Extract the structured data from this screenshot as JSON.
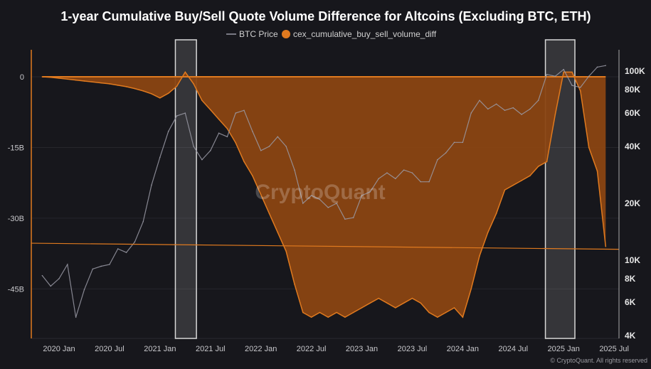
{
  "chart_data": {
    "type": "area",
    "title": "1-year Cumulative Buy/Sell Quote Volume Difference for Altcoins (Excluding BTC, ETH)",
    "watermark": "CryptoQuant",
    "copyright": "© CryptoQuant. All rights reserved",
    "colors": {
      "background": "#17171c",
      "diff": "#e07a1f",
      "diff_fill": "#8a4512",
      "btc": "#9a9aa6",
      "highlight": "#ffffff"
    },
    "legend": {
      "position": "top",
      "entries": [
        {
          "name": "BTC Price",
          "marker": "line"
        },
        {
          "name": "cex_cumulative_buy_sell_volume_diff",
          "marker": "circle"
        }
      ]
    },
    "x_ticks": [
      "2020 Jan",
      "2020 Jul",
      "2021 Jan",
      "2021 Jul",
      "2022 Jan",
      "2022 Jul",
      "2023 Jan",
      "2023 Jul",
      "2024 Jan",
      "2024 Jul",
      "2025 Jan",
      "2025 Jul"
    ],
    "left_axis": {
      "ticks": [
        {
          "v": 0,
          "label": "0"
        },
        {
          "v": -15,
          "label": "-15B"
        },
        {
          "v": -30,
          "label": "-30B"
        },
        {
          "v": -45,
          "label": "-45B"
        }
      ],
      "range": [
        -55,
        4
      ],
      "unit": "B"
    },
    "right_axis": {
      "scale": "log",
      "range": [
        4000,
        110000
      ],
      "ticks": [
        {
          "v": 100000,
          "label": "100K"
        },
        {
          "v": 80000,
          "label": "80K"
        },
        {
          "v": 60000,
          "label": "60K"
        },
        {
          "v": 40000,
          "label": "40K"
        },
        {
          "v": 20000,
          "label": "20K"
        },
        {
          "v": 10000,
          "label": "10K"
        },
        {
          "v": 8000,
          "label": "8K"
        },
        {
          "v": 6000,
          "label": "6K"
        },
        {
          "v": 4000,
          "label": "4K"
        }
      ]
    },
    "x": [
      "2019-11",
      "2019-12",
      "2020-01",
      "2020-02",
      "2020-03",
      "2020-04",
      "2020-05",
      "2020-06",
      "2020-07",
      "2020-08",
      "2020-09",
      "2020-10",
      "2020-11",
      "2020-12",
      "2021-01",
      "2021-02",
      "2021-03",
      "2021-04",
      "2021-05",
      "2021-06",
      "2021-07",
      "2021-08",
      "2021-09",
      "2021-10",
      "2021-11",
      "2021-12",
      "2022-01",
      "2022-02",
      "2022-03",
      "2022-04",
      "2022-05",
      "2022-06",
      "2022-07",
      "2022-08",
      "2022-09",
      "2022-10",
      "2022-11",
      "2022-12",
      "2023-01",
      "2023-02",
      "2023-03",
      "2023-04",
      "2023-05",
      "2023-06",
      "2023-07",
      "2023-08",
      "2023-09",
      "2023-10",
      "2023-11",
      "2023-12",
      "2024-01",
      "2024-02",
      "2024-03",
      "2024-04",
      "2024-05",
      "2024-06",
      "2024-07",
      "2024-08",
      "2024-09",
      "2024-10",
      "2024-11",
      "2024-12",
      "2025-01",
      "2025-02",
      "2025-03",
      "2025-04",
      "2025-05",
      "2025-06"
    ],
    "series": [
      {
        "name": "cex_cumulative_buy_sell_volume_diff",
        "axis": "left",
        "values": [
          0,
          -0.1,
          -0.3,
          -0.5,
          -0.7,
          -0.9,
          -1.1,
          -1.3,
          -1.5,
          -1.8,
          -2.1,
          -2.5,
          -3,
          -3.6,
          -4.5,
          -3.5,
          -2,
          1,
          -1.5,
          -5,
          -7,
          -9,
          -11,
          -14,
          -18,
          -21,
          -25,
          -29,
          -33,
          -37,
          -44,
          -50,
          -51,
          -50,
          -51,
          -50,
          -51,
          -50,
          -49,
          -48,
          -47,
          -48,
          -49,
          -48,
          -47,
          -48,
          -50,
          -51,
          -50,
          -49,
          -51,
          -45,
          -38,
          -33,
          -29,
          -24,
          -23,
          -22,
          -21,
          -19,
          -18,
          -8,
          1,
          1,
          -3,
          -15,
          -20,
          -36
        ]
      },
      {
        "name": "BTC Price",
        "axis": "right",
        "values": [
          8300,
          7300,
          8000,
          9500,
          5000,
          7000,
          9000,
          9300,
          9500,
          11500,
          11000,
          12500,
          16000,
          25000,
          35000,
          48000,
          58000,
          60000,
          40000,
          34000,
          38000,
          47000,
          45000,
          60000,
          62000,
          48000,
          38000,
          40000,
          45000,
          40000,
          30000,
          20000,
          22000,
          21000,
          19000,
          20000,
          16500,
          16800,
          22000,
          23000,
          27000,
          29000,
          27000,
          30000,
          29000,
          26000,
          26000,
          34000,
          37000,
          42000,
          42000,
          60000,
          70000,
          63000,
          67000,
          62000,
          64000,
          59000,
          63000,
          70000,
          96000,
          94000,
          102000,
          84000,
          82000,
          94000,
          105000,
          107000
        ]
      }
    ],
    "reference_line": {
      "axis": "left",
      "from": -35.3,
      "to": -36.6
    },
    "highlights": [
      {
        "start": "2021-03",
        "end": "2021-05"
      },
      {
        "start": "2024-11",
        "end": "2025-02"
      }
    ]
  }
}
